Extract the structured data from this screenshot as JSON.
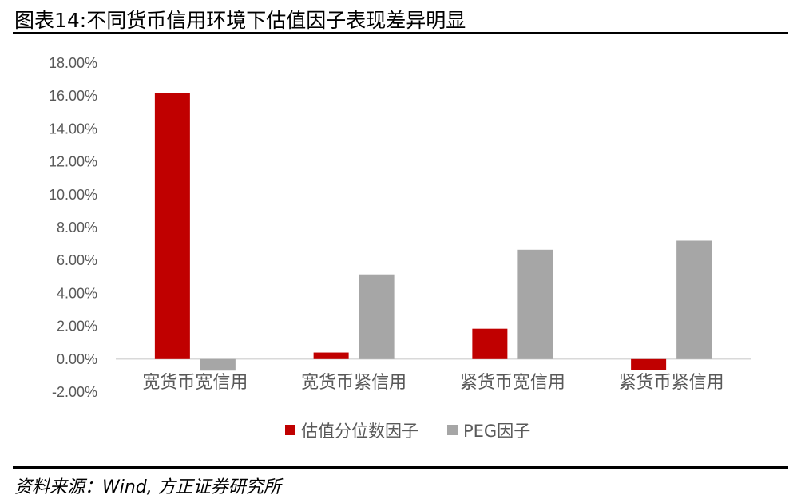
{
  "figure": {
    "title": "图表14:不同货币信用环境下估值因子表现差异明显",
    "source": "资料来源：Wind, 方正证券研究所"
  },
  "chart_data": {
    "type": "bar",
    "categories": [
      "宽货币宽信用",
      "宽货币紧信用",
      "紧货币宽信用",
      "紧货币紧信用"
    ],
    "series": [
      {
        "name": "估值分位数因子",
        "color": "#C00000",
        "values": [
          16.2,
          0.4,
          1.85,
          -0.65
        ]
      },
      {
        "name": "PEG因子",
        "color": "#A6A6A6",
        "values": [
          -0.7,
          5.15,
          6.65,
          7.2
        ]
      }
    ],
    "ylim": [
      -2,
      18
    ],
    "yticks": [
      -2,
      0,
      2,
      4,
      6,
      8,
      10,
      12,
      14,
      16,
      18
    ],
    "ytick_labels": [
      "-2.00%",
      "0.00%",
      "2.00%",
      "4.00%",
      "6.00%",
      "8.00%",
      "10.00%",
      "12.00%",
      "14.00%",
      "16.00%",
      "18.00%"
    ],
    "grid": false,
    "legend_position": "bottom"
  }
}
